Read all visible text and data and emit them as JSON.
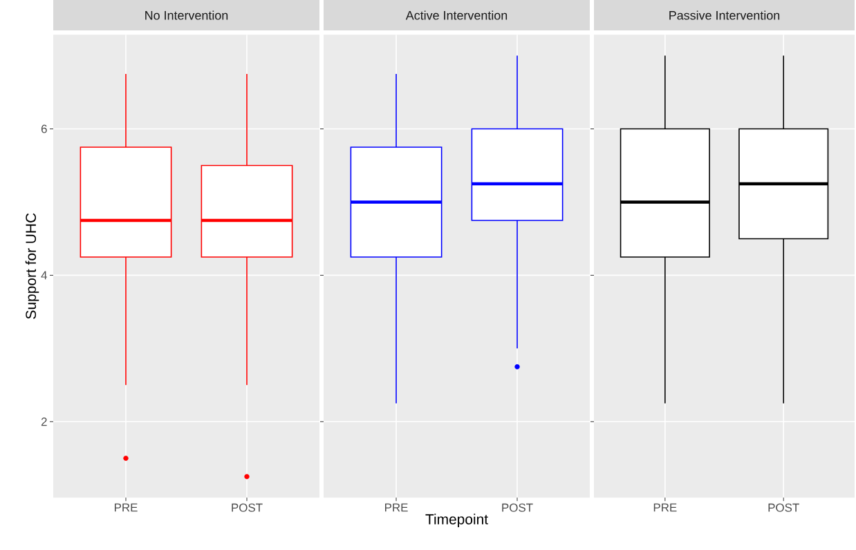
{
  "chart_data": [
    {
      "type": "box",
      "title": "No Intervention",
      "ylabel": "Support for UHC",
      "categories": [
        "PRE",
        "POST"
      ],
      "ylim": [
        0.9625,
        7.2875
      ],
      "yticks": [
        2,
        4,
        6
      ],
      "grid": true,
      "series": [
        {
          "color": "#ff0000",
          "boxes": [
            {
              "low": 2.5,
              "q1": 4.25,
              "median": 4.75,
              "q3": 5.75,
              "high": 6.75,
              "outliers": [
                1.5
              ]
            },
            {
              "low": 2.5,
              "q1": 4.25,
              "median": 4.75,
              "q3": 5.5,
              "high": 6.75,
              "outliers": [
                1.25
              ]
            }
          ]
        }
      ]
    },
    {
      "type": "box",
      "title": "Active Intervention",
      "xlabel": "Timepoint",
      "categories": [
        "PRE",
        "POST"
      ],
      "ylim": [
        0.9625,
        7.2875
      ],
      "yticks": [
        2,
        4,
        6
      ],
      "grid": true,
      "tick_labels": "x",
      "series": [
        {
          "color": "#0000ff",
          "boxes": [
            {
              "low": 2.25,
              "q1": 4.25,
              "median": 5.0,
              "q3": 5.75,
              "high": 6.75
            },
            {
              "low": 3.0,
              "q1": 4.75,
              "median": 5.25,
              "q3": 6.0,
              "high": 7.0,
              "outliers": [
                2.75
              ]
            }
          ]
        }
      ]
    },
    {
      "type": "box",
      "title": "Passive Intervention",
      "categories": [
        "PRE",
        "POST"
      ],
      "ylim": [
        0.9625,
        7.2875
      ],
      "yticks": [
        2,
        4,
        6
      ],
      "grid": true,
      "tick_labels": "x",
      "series": [
        {
          "color": "#000000",
          "boxes": [
            {
              "low": 2.25,
              "q1": 4.25,
              "median": 5.0,
              "q3": 6.0,
              "high": 7.0
            },
            {
              "low": 2.25,
              "q1": 4.5,
              "median": 5.25,
              "q3": 6.0,
              "high": 7.0
            }
          ]
        }
      ]
    }
  ]
}
